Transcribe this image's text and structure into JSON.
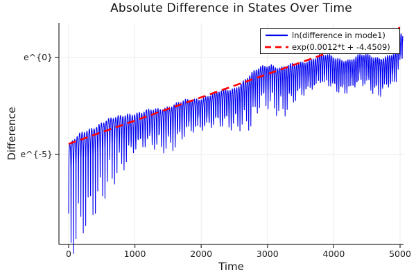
{
  "chart_data": {
    "type": "line",
    "title": "Absolute Difference in States Over Time",
    "xlabel": "Time",
    "ylabel": "Difference",
    "xlim": [
      -146,
      5052
    ],
    "ylim_ln": [
      -9.64,
      1.79
    ],
    "grid": true,
    "legend_position": "top-right",
    "xticks": [
      0,
      1000,
      2000,
      3000,
      4000,
      5000
    ],
    "yticks": [
      {
        "ln": 0,
        "label": "e^{0}"
      },
      {
        "ln": -5,
        "label": "e^{-5}"
      }
    ],
    "style": {
      "background": "#ffffff",
      "axis_color": "#2b2b2b",
      "grid_color": "#ebebeb",
      "text_color": "#1c1c1c"
    },
    "series": [
      {
        "name": "ln(difference in mode1)",
        "color": "#0000ee",
        "style": "solid",
        "description": "Natural log of absolute state difference: dense comb of downward cusps whose upper envelope rises roughly linearly in ln-space; very deep spikes near t=0 and a tall cluster reaching ln~1.2 near t=5000",
        "t_start": 0,
        "t_end": 5040,
        "oscillation_period_t": {
          "start": 37,
          "end": 29
        },
        "upper_envelope_ln": [
          [
            0,
            -4.55
          ],
          [
            150,
            -4.05
          ],
          [
            300,
            -3.7
          ],
          [
            500,
            -3.35
          ],
          [
            700,
            -3.15
          ],
          [
            900,
            -2.86
          ],
          [
            1100,
            -2.86
          ],
          [
            1300,
            -2.7
          ],
          [
            1500,
            -2.5
          ],
          [
            1700,
            -2.33
          ],
          [
            2000,
            -2.05
          ],
          [
            2300,
            -1.78
          ],
          [
            2500,
            -1.55
          ],
          [
            2700,
            -1.05
          ],
          [
            2900,
            -0.5
          ],
          [
            3050,
            -0.32
          ],
          [
            3200,
            -0.55
          ],
          [
            3400,
            -0.38
          ],
          [
            3600,
            -0.12
          ],
          [
            3800,
            0.1
          ],
          [
            3950,
            0.05
          ],
          [
            4100,
            -0.05
          ],
          [
            4250,
            -0.12
          ],
          [
            4400,
            0.08
          ],
          [
            4550,
            0.12
          ],
          [
            4700,
            0.0
          ],
          [
            4850,
            0.08
          ],
          [
            4930,
            0.15
          ],
          [
            4990,
            1.2
          ],
          [
            5040,
            1.25
          ]
        ],
        "cusp_depth_ln": [
          [
            0,
            5.0
          ],
          [
            100,
            4.6
          ],
          [
            200,
            4.3
          ],
          [
            300,
            3.9
          ],
          [
            400,
            3.6
          ],
          [
            600,
            3.0
          ],
          [
            800,
            2.4
          ],
          [
            1000,
            1.5
          ],
          [
            1200,
            1.5
          ],
          [
            1400,
            1.8
          ],
          [
            1600,
            1.9
          ],
          [
            1800,
            1.4
          ],
          [
            2000,
            1.3
          ],
          [
            2200,
            1.4
          ],
          [
            2400,
            1.6
          ],
          [
            2600,
            1.9
          ],
          [
            2750,
            2.3
          ],
          [
            2900,
            1.6
          ],
          [
            3100,
            1.9
          ],
          [
            3250,
            2.1
          ],
          [
            3400,
            1.6
          ],
          [
            3600,
            1.3
          ],
          [
            3800,
            1.2
          ],
          [
            4000,
            1.4
          ],
          [
            4150,
            1.45
          ],
          [
            4300,
            1.2
          ],
          [
            4500,
            1.3
          ],
          [
            4650,
            1.7
          ],
          [
            4800,
            1.3
          ],
          [
            4950,
            1.4
          ],
          [
            5040,
            1.3
          ]
        ]
      },
      {
        "name": "exp(0.0012*t + -4.4509)",
        "color": "#ff0000",
        "style": "dashed",
        "fit": {
          "slope": 0.0012,
          "intercept": -4.4509
        },
        "t_start": 0,
        "t_end": 5000
      }
    ]
  }
}
